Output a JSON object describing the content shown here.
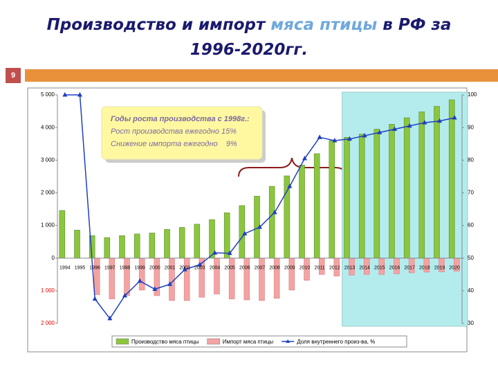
{
  "header": {
    "title_parts": [
      "Производство и импорт",
      "мяса птицы",
      "в РФ за",
      "1996-2020гг."
    ],
    "page_number": "9"
  },
  "chart_data": {
    "type": "bar",
    "categories": [
      "1994",
      "1995",
      "1996",
      "1997",
      "1998",
      "1999",
      "2000",
      "2001",
      "2002",
      "2003",
      "2004",
      "2005",
      "2006",
      "2007",
      "2008",
      "2009",
      "2010",
      "2011",
      "2012",
      "2013",
      "2014",
      "2015",
      "2016",
      "2017",
      "2018",
      "2019",
      "2020"
    ],
    "series": [
      {
        "name": "Производство мяса птицы",
        "color": "#8cc63e",
        "values": [
          1460,
          860,
          690,
          630,
          690,
          740,
          770,
          880,
          940,
          1040,
          1180,
          1390,
          1610,
          1900,
          2200,
          2520,
          2850,
          3200,
          3600,
          3700,
          3800,
          3950,
          4100,
          4300,
          4480,
          4650,
          4850
        ]
      },
      {
        "name": "Импорт мяса птицы",
        "color": "#f4a3a3",
        "values": [
          null,
          null,
          -1120,
          -1250,
          -1150,
          -980,
          -1150,
          -1300,
          -1300,
          -1200,
          -1100,
          -1250,
          -1280,
          -1300,
          -1230,
          -980,
          -680,
          -500,
          -550,
          -520,
          -500,
          -500,
          -480,
          -450,
          -430,
          -420,
          -400
        ]
      },
      {
        "name": "Доля внутреннего произ-ва, %",
        "color": "#1f3fbf",
        "type": "line",
        "axis": "y2",
        "values": [
          100,
          100,
          37.5,
          31.5,
          38.5,
          43,
          40.5,
          42,
          46.5,
          48,
          51.6,
          51.5,
          57.5,
          59.5,
          64,
          72,
          80.5,
          87,
          86,
          86.5,
          87.5,
          88.5,
          89.5,
          90.5,
          91.5,
          92,
          93
        ]
      }
    ],
    "ylim": [
      -2000,
      5000
    ],
    "yticks": [
      {
        "value": 5000,
        "label": "5 000"
      },
      {
        "value": 4000,
        "label": "4 000"
      },
      {
        "value": 3000,
        "label": "3 000"
      },
      {
        "value": 2000,
        "label": "2 000"
      },
      {
        "value": 1000,
        "label": "1 000"
      },
      0,
      {
        "value": -1000,
        "label": "1 000"
      },
      {
        "value": -2000,
        "label": "2 000"
      }
    ],
    "y2lim": [
      30,
      100
    ],
    "y2ticks": [
      30,
      40,
      50,
      60,
      70,
      80,
      90,
      100
    ],
    "annotation": [
      "Годы роста производства с 1998г.:",
      "Рост производства ежегодно 15%",
      "Снижение импорта ежегодно    9%"
    ],
    "legend": "bottom"
  }
}
